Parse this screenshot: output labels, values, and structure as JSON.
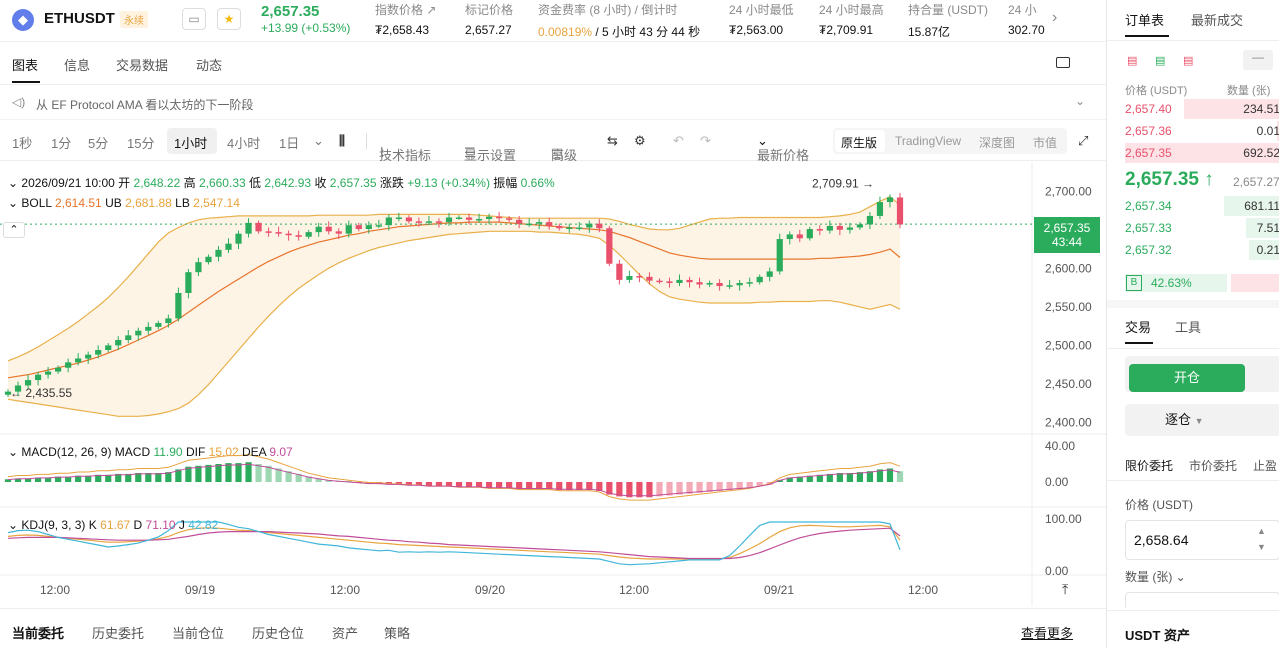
{
  "header": {
    "symbol": "ETHUSDT",
    "badge": "永续",
    "last_price": "2,657.35",
    "change": "+13.99 (+0.53%)",
    "stats": [
      {
        "label": "指数价格",
        "value": "₮2,658.43"
      },
      {
        "label": "标记价格",
        "value": "2,657.27"
      },
      {
        "label": "资金费率 (8 小时) / 倒计时",
        "value_green": "0.00819%",
        "value": " / 5 小时 43 分 44 秒"
      },
      {
        "label": "24 小时最低",
        "value": "₮2,563.00"
      },
      {
        "label": "24 小时最高",
        "value": "₮2,709.91"
      },
      {
        "label": "持合量 (USDT)",
        "value": "15.87亿"
      },
      {
        "label": "24 小",
        "value": "302.70"
      }
    ]
  },
  "tabs": [
    "图表",
    "信息",
    "交易数据",
    "动态"
  ],
  "notice": "从 EF Protocol AMA 看以太坊的下一阶段",
  "toolbar": {
    "intervals": [
      "1秒",
      "1分",
      "5分",
      "15分",
      "1小时",
      "4小时",
      "1日"
    ],
    "active_interval": "1小时",
    "tools": [
      "技术指标",
      "显示设置",
      "高级"
    ],
    "price_type": "最新价格",
    "views": [
      "原生版",
      "TradingView",
      "深度图",
      "市值"
    ]
  },
  "legend": {
    "date": "2026/09/21 10:00",
    "open_label": "开",
    "open": "2,648.22",
    "high_label": "高",
    "high": "2,660.33",
    "low_label": "低",
    "low": "2,642.93",
    "close_label": "收",
    "close": "2,657.35",
    "chg_label": "涨跌",
    "chg": "+9.13 (+0.34%)",
    "amp_label": "振幅",
    "amp": "0.66%",
    "boll_label": "BOLL",
    "boll": "2,614.51",
    "ub_label": "UB",
    "ub": "2,681.88",
    "lb_label": "LB",
    "lb": "2,547.14",
    "macd_label": "MACD(12, 26, 9)",
    "macd_name": "MACD",
    "macd": "11.90",
    "dif_label": "DIF",
    "dif": "15.02",
    "dea_label": "DEA",
    "dea": "9.07",
    "kdj_label": "KDJ(9, 3, 3)",
    "k_label": "K",
    "k": "61.67",
    "d_label": "D",
    "d": "71.10",
    "j_label": "J",
    "j": "42.82"
  },
  "chart_data": {
    "type": "candlestick",
    "y_ticks": [
      "2,700.00",
      "2,650.00",
      "2,600.00",
      "2,550.00",
      "2,500.00",
      "2,450.00",
      "2,400.00"
    ],
    "ylim": [
      2385,
      2738
    ],
    "macd_ticks": [
      "40.00",
      "0.00"
    ],
    "kdj_ticks": [
      "100.00",
      "0.00"
    ],
    "x_ticks": [
      "12:00",
      "09/19",
      "12:00",
      "09/20",
      "12:00",
      "09/21",
      "12:00"
    ],
    "current_price": "2,657.35",
    "countdown": "43:44",
    "high_mark": "2,709.91",
    "low_mark": "2,435.55",
    "closes": [
      2440,
      2448,
      2455,
      2462,
      2466,
      2471,
      2478,
      2483,
      2488,
      2494,
      2500,
      2507,
      2513,
      2519,
      2524,
      2529,
      2535,
      2568,
      2595,
      2608,
      2615,
      2624,
      2632,
      2645,
      2659,
      2648,
      2647,
      2645,
      2643,
      2641,
      2647,
      2654,
      2648,
      2645,
      2656,
      2651,
      2656,
      2656,
      2666,
      2666,
      2661,
      2660,
      2661,
      2660,
      2666,
      2666,
      2663,
      2664,
      2667,
      2665,
      2663,
      2658,
      2658,
      2660,
      2655,
      2652,
      2653,
      2653,
      2658,
      2652,
      2606,
      2585,
      2590,
      2589,
      2584,
      2583,
      2581,
      2585,
      2582,
      2579,
      2581,
      2577,
      2578,
      2581,
      2582,
      2589,
      2596,
      2638,
      2644,
      2639,
      2651,
      2649,
      2655,
      2650,
      2653,
      2657,
      2668,
      2686,
      2692,
      2657
    ],
    "upper_band": [
      2480,
      2485,
      2491,
      2498,
      2506,
      2514,
      2522,
      2531,
      2541,
      2551,
      2562,
      2575,
      2589,
      2604,
      2619,
      2634,
      2646,
      2653,
      2659,
      2663,
      2665,
      2666,
      2667,
      2668,
      2668,
      2668,
      2668,
      2668,
      2668,
      2668,
      2668,
      2669,
      2669,
      2669,
      2669,
      2669,
      2669,
      2670,
      2670,
      2670,
      2670,
      2670,
      2670,
      2670,
      2670,
      2670,
      2670,
      2669,
      2668,
      2667,
      2666,
      2665,
      2665,
      2665,
      2665,
      2665,
      2665,
      2665,
      2665,
      2665,
      2664,
      2661,
      2657,
      2654,
      2651,
      2650,
      2650,
      2652,
      2656,
      2660,
      2664,
      2665,
      2665,
      2666,
      2666,
      2666,
      2666,
      2666,
      2666,
      2666,
      2666,
      2666,
      2667,
      2668,
      2670,
      2673,
      2680,
      2687,
      2693,
      2682
    ],
    "middle_band": [
      2458,
      2460,
      2462,
      2465,
      2468,
      2471,
      2474,
      2477,
      2481,
      2485,
      2490,
      2495,
      2501,
      2507,
      2513,
      2519,
      2526,
      2534,
      2543,
      2552,
      2561,
      2570,
      2578,
      2586,
      2594,
      2602,
      2609,
      2615,
      2621,
      2626,
      2630,
      2634,
      2637,
      2640,
      2643,
      2645,
      2648,
      2650,
      2652,
      2654,
      2655,
      2656,
      2657,
      2658,
      2659,
      2659,
      2660,
      2660,
      2660,
      2660,
      2659,
      2658,
      2657,
      2656,
      2655,
      2654,
      2653,
      2652,
      2651,
      2650,
      2648,
      2644,
      2640,
      2635,
      2630,
      2625,
      2620,
      2617,
      2615,
      2613,
      2612,
      2612,
      2612,
      2612,
      2612,
      2612,
      2612,
      2612,
      2612,
      2612,
      2612,
      2613,
      2613,
      2614,
      2615,
      2616,
      2618,
      2621,
      2625,
      2614
    ],
    "lower_band": [
      2430,
      2428,
      2426,
      2424,
      2422,
      2420,
      2418,
      2416,
      2414,
      2412,
      2410,
      2408,
      2408,
      2408,
      2409,
      2411,
      2414,
      2418,
      2425,
      2436,
      2449,
      2464,
      2479,
      2494,
      2509,
      2524,
      2538,
      2551,
      2563,
      2574,
      2583,
      2592,
      2600,
      2607,
      2613,
      2618,
      2623,
      2627,
      2630,
      2633,
      2636,
      2638,
      2640,
      2642,
      2644,
      2645,
      2646,
      2647,
      2648,
      2648,
      2648,
      2648,
      2648,
      2647,
      2647,
      2646,
      2645,
      2644,
      2642,
      2639,
      2630,
      2618,
      2605,
      2592,
      2580,
      2570,
      2563,
      2560,
      2558,
      2556,
      2555,
      2555,
      2555,
      2555,
      2555,
      2556,
      2556,
      2557,
      2557,
      2557,
      2557,
      2558,
      2558,
      2556,
      2553,
      2550,
      2547,
      2550,
      2553,
      2547
    ],
    "macd_hist": [
      3,
      4,
      4,
      5,
      5,
      6,
      6,
      7,
      7,
      8,
      8,
      9,
      9,
      10,
      10,
      10,
      11,
      14,
      17,
      18,
      19,
      20,
      21,
      21,
      22,
      20,
      18,
      15,
      12,
      9,
      6,
      4,
      2,
      1,
      0,
      -1,
      -2,
      -2,
      -3,
      -3,
      -4,
      -4,
      -5,
      -5,
      -5,
      -6,
      -6,
      -6,
      -7,
      -7,
      -7,
      -8,
      -8,
      -8,
      -8,
      -9,
      -9,
      -9,
      -9,
      -10,
      -14,
      -16,
      -17,
      -17,
      -17,
      -16,
      -15,
      -14,
      -13,
      -12,
      -11,
      -10,
      -9,
      -8,
      -7,
      -5,
      -3,
      2,
      5,
      6,
      7,
      8,
      9,
      10,
      10,
      11,
      12,
      14,
      15,
      12
    ],
    "kdj_k": [
      70,
      72,
      73,
      72,
      70,
      68,
      66,
      64,
      62,
      60,
      58,
      58,
      59,
      60,
      62,
      65,
      70,
      78,
      84,
      87,
      88,
      87,
      85,
      83,
      82,
      80,
      78,
      76,
      74,
      72,
      70,
      68,
      66,
      64,
      62,
      60,
      58,
      56,
      55,
      53,
      52,
      51,
      50,
      49,
      48,
      47,
      46,
      45,
      44,
      43,
      42,
      41,
      40,
      39,
      38,
      37,
      36,
      35,
      34,
      33,
      30,
      27,
      25,
      24,
      23,
      23,
      23,
      23,
      23,
      23,
      23,
      23,
      26,
      34,
      44,
      55,
      68,
      80,
      88,
      92,
      93,
      92,
      91,
      90,
      90,
      91,
      92,
      93,
      90,
      62
    ],
    "kdj_d": [
      66,
      67,
      68,
      68,
      68,
      68,
      67,
      66,
      65,
      64,
      63,
      62,
      62,
      62,
      62,
      63,
      64,
      67,
      70,
      74,
      77,
      79,
      80,
      80,
      80,
      80,
      80,
      79,
      78,
      77,
      76,
      75,
      73,
      71,
      70,
      68,
      66,
      64,
      62,
      61,
      59,
      58,
      56,
      55,
      53,
      52,
      51,
      50,
      49,
      48,
      47,
      46,
      45,
      44,
      43,
      42,
      41,
      40,
      39,
      38,
      36,
      34,
      32,
      30,
      28,
      27,
      26,
      25,
      24,
      24,
      24,
      24,
      24,
      26,
      30,
      36,
      44,
      52,
      60,
      67,
      72,
      76,
      79,
      81,
      83,
      84,
      85,
      86,
      87,
      71
    ],
    "kdj_j": [
      78,
      82,
      83,
      80,
      74,
      68,
      64,
      60,
      56,
      52,
      48,
      50,
      53,
      56,
      62,
      69,
      82,
      100,
      112,
      113,
      110,
      103,
      95,
      89,
      86,
      80,
      74,
      70,
      66,
      62,
      58,
      54,
      52,
      50,
      46,
      44,
      42,
      40,
      41,
      37,
      38,
      37,
      38,
      37,
      38,
      37,
      36,
      35,
      34,
      33,
      32,
      31,
      30,
      29,
      28,
      27,
      26,
      25,
      24,
      23,
      18,
      13,
      11,
      12,
      13,
      15,
      17,
      19,
      21,
      21,
      21,
      21,
      30,
      50,
      72,
      93,
      116,
      100,
      100,
      100,
      100,
      100,
      100,
      100,
      100,
      100,
      100,
      100,
      96,
      42
    ]
  },
  "orderbook": {
    "tabs": [
      "订单表",
      "最新成交"
    ],
    "col_price": "价格 (USDT)",
    "col_qty": "数量 (张)",
    "asks": [
      {
        "price": "2,657.40",
        "qty": "234.51",
        "depth": 0.62
      },
      {
        "price": "2,657.36",
        "qty": "0.01",
        "depth": 0.02
      },
      {
        "price": "2,657.35",
        "qty": "692.52",
        "depth": 1.0
      }
    ],
    "last": "2,657.35",
    "last_arrow": "↑",
    "mark": "2,657.27",
    "bids": [
      {
        "price": "2,657.34",
        "qty": "681.11",
        "depth": 0.36
      },
      {
        "price": "2,657.33",
        "qty": "7.51",
        "depth": 0.22
      },
      {
        "price": "2,657.32",
        "qty": "0.21",
        "depth": 0.2
      }
    ],
    "buy_badge": "B",
    "buy_ratio": "42.63%"
  },
  "trade": {
    "tabs": [
      "交易",
      "工具"
    ],
    "open_btn": "开仓",
    "margin_mode": "逐仓",
    "order_types": [
      "限价委托",
      "市价委托",
      "止盈"
    ],
    "price_label": "价格 (USDT)",
    "price_value": "2,658.64",
    "qty_label": "数量 (张)",
    "assets_label": "USDT 资产"
  },
  "bottom": {
    "tabs": [
      "当前委托",
      "历史委托",
      "当前仓位",
      "历史仓位",
      "资产",
      "策略"
    ],
    "view_more": "查看更多"
  }
}
